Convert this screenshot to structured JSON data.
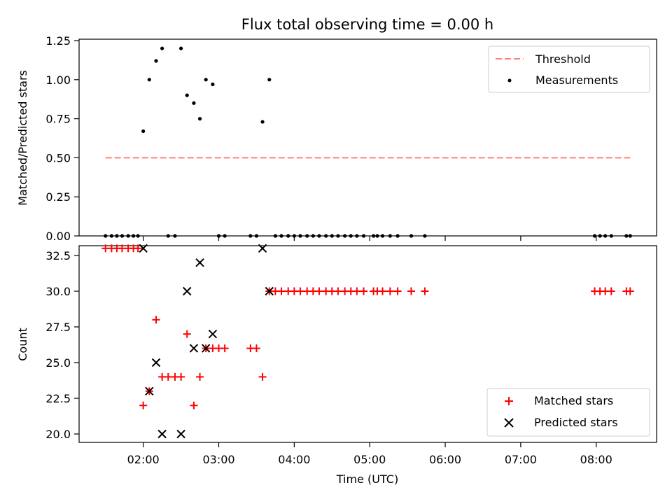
{
  "chart_data": [
    {
      "type": "scatter",
      "title": "Flux total observing time = 0.00 h",
      "xlabel": "",
      "ylabel": "Matched/Predicted stars",
      "ylim": [
        0,
        1.25
      ],
      "yticks": [
        "0.00",
        "0.25",
        "0.50",
        "0.75",
        "1.00",
        "1.25"
      ],
      "xlim_hours": [
        1.15,
        8.8
      ],
      "grid": false,
      "legend_position": "top-right",
      "colors": {
        "threshold": "#ff7f7f",
        "measurements": "#000000"
      },
      "threshold": {
        "name": "Threshold",
        "y": 0.5,
        "x_start": 1.5,
        "x_end": 8.45
      },
      "series": [
        {
          "name": "Measurements",
          "x": [
            1.5,
            1.58,
            1.65,
            1.72,
            1.8,
            1.87,
            1.93,
            2.0,
            2.08,
            2.17,
            2.25,
            2.33,
            2.42,
            2.5,
            2.58,
            2.67,
            2.75,
            2.83,
            2.92,
            3.0,
            3.08,
            3.42,
            3.5,
            3.58,
            3.67,
            3.75,
            3.83,
            3.92,
            4.0,
            4.08,
            4.17,
            4.25,
            4.33,
            4.42,
            4.5,
            4.58,
            4.67,
            4.75,
            4.83,
            4.92,
            5.05,
            5.1,
            5.17,
            5.27,
            5.37,
            5.55,
            5.73,
            7.98,
            8.05,
            8.12,
            8.2,
            8.4,
            8.45
          ],
          "y": [
            0,
            0,
            0,
            0,
            0,
            0,
            0,
            0.67,
            1.0,
            1.12,
            1.2,
            0,
            0,
            1.2,
            0.9,
            0.85,
            0.75,
            1.0,
            0.97,
            0,
            0,
            0,
            0,
            0.73,
            1.0,
            0,
            0,
            0,
            0,
            0,
            0,
            0,
            0,
            0,
            0,
            0,
            0,
            0,
            0,
            0,
            0,
            0,
            0,
            0,
            0,
            0,
            0,
            0,
            0,
            0,
            0,
            0,
            0
          ]
        }
      ]
    },
    {
      "type": "scatter",
      "title": "",
      "xlabel": "Time (UTC)",
      "ylabel": "Count",
      "ylim": [
        19.5,
        33.6
      ],
      "yticks": [
        "20.0",
        "22.5",
        "25.0",
        "27.5",
        "30.0",
        "32.5"
      ],
      "xticks": [
        "02:00",
        "03:00",
        "04:00",
        "05:00",
        "06:00",
        "07:00",
        "08:00"
      ],
      "xlim_hours": [
        1.15,
        8.8
      ],
      "grid": false,
      "legend_position": "bottom-right",
      "colors": {
        "matched": "#ff0000",
        "predicted": "#000000"
      },
      "series": [
        {
          "name": "Matched stars",
          "marker": "plus",
          "x": [
            1.5,
            1.58,
            1.65,
            1.72,
            1.8,
            1.87,
            1.93,
            2.0,
            2.08,
            2.17,
            2.25,
            2.33,
            2.42,
            2.5,
            2.58,
            2.67,
            2.75,
            2.83,
            2.92,
            3.0,
            3.08,
            3.42,
            3.5,
            3.58,
            3.67,
            3.75,
            3.83,
            3.92,
            4.0,
            4.08,
            4.17,
            4.25,
            4.33,
            4.42,
            4.5,
            4.58,
            4.67,
            4.75,
            4.83,
            4.92,
            5.05,
            5.1,
            5.17,
            5.27,
            5.37,
            5.55,
            5.73,
            7.98,
            8.05,
            8.12,
            8.2,
            8.4,
            8.45
          ],
          "y": [
            33,
            33,
            33,
            33,
            33,
            33,
            33,
            22,
            23,
            28,
            24,
            24,
            24,
            24,
            27,
            22,
            24,
            26,
            26,
            26,
            26,
            26,
            26,
            24,
            30,
            30,
            30,
            30,
            30,
            30,
            30,
            30,
            30,
            30,
            30,
            30,
            30,
            30,
            30,
            30,
            30,
            30,
            30,
            30,
            30,
            30,
            30,
            30,
            30,
            30,
            30,
            30,
            30
          ]
        },
        {
          "name": "Predicted stars",
          "marker": "x",
          "x": [
            2.0,
            2.08,
            2.17,
            2.25,
            2.5,
            2.58,
            2.67,
            2.75,
            2.83,
            2.92,
            3.58,
            3.67
          ],
          "y": [
            33,
            23,
            25,
            20,
            20,
            30,
            26,
            32,
            26,
            27,
            33,
            30
          ]
        }
      ]
    }
  ]
}
